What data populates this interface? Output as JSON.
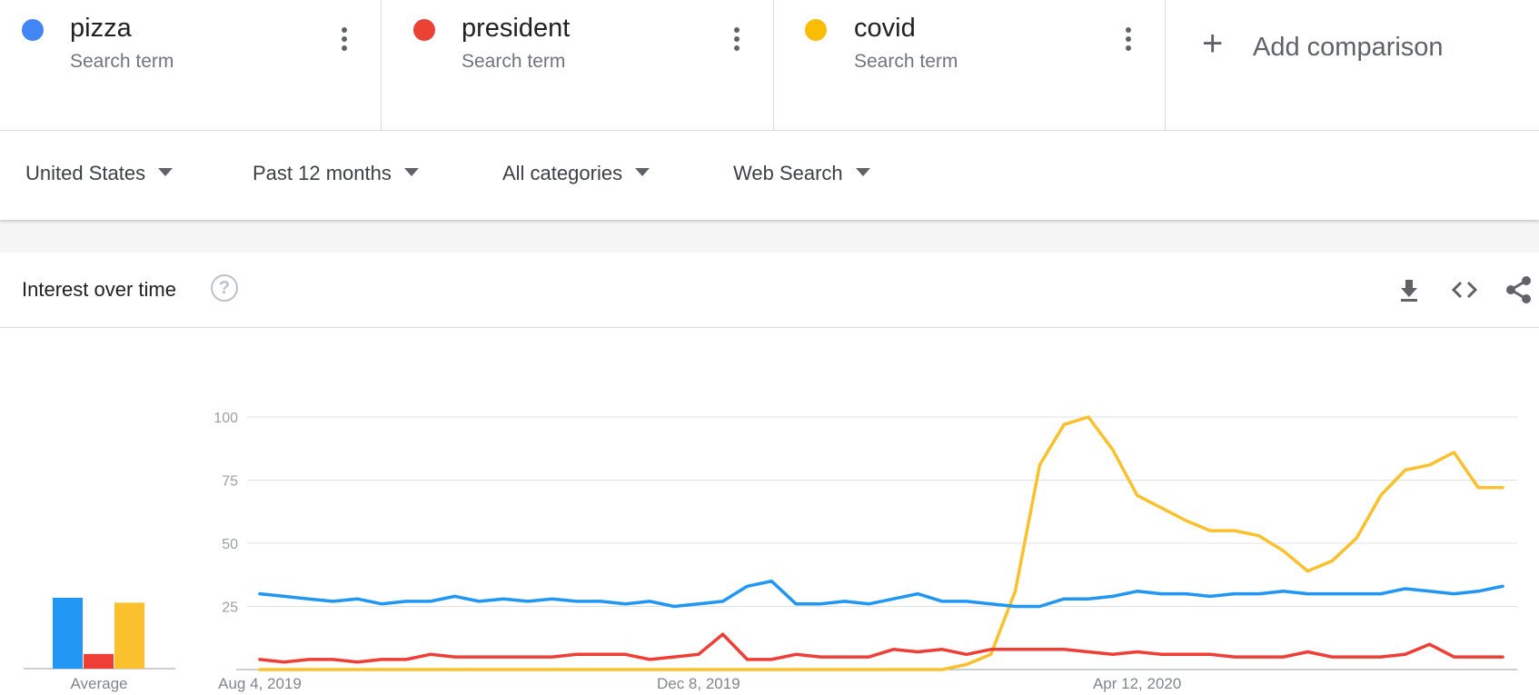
{
  "terms": [
    {
      "name": "pizza",
      "sub": "Search term",
      "color": "#4285f4"
    },
    {
      "name": "president",
      "sub": "Search term",
      "color": "#ea4335"
    },
    {
      "name": "covid",
      "sub": "Search term",
      "color": "#fbbc04"
    }
  ],
  "add_comparison": {
    "icon": "+",
    "label": "Add comparison"
  },
  "filters": {
    "region": "United States",
    "period": "Past 12 months",
    "category": "All categories",
    "property": "Web Search"
  },
  "card": {
    "title": "Interest over time",
    "help_icon": "?",
    "tools": [
      "download-icon",
      "embed-icon",
      "share-icon"
    ]
  },
  "chart_data": {
    "type": "line",
    "title": "",
    "ylim": [
      0,
      100
    ],
    "y_ticks": [
      25,
      50,
      75,
      100
    ],
    "grid": true,
    "x_tick_labels": [
      "Aug 4, 2019",
      "Dec 8, 2019",
      "Apr 12, 2020"
    ],
    "x_tick_index": [
      0,
      18,
      36
    ],
    "series": [
      {
        "name": "pizza",
        "color": "#2196f3",
        "values": [
          30,
          29,
          28,
          27,
          28,
          26,
          27,
          27,
          29,
          27,
          28,
          27,
          28,
          27,
          27,
          26,
          27,
          25,
          26,
          27,
          33,
          35,
          26,
          26,
          27,
          26,
          28,
          30,
          27,
          27,
          26,
          25,
          25,
          28,
          28,
          29,
          31,
          30,
          30,
          29,
          30,
          30,
          31,
          30,
          30,
          30,
          30,
          32,
          31,
          30,
          31,
          33
        ]
      },
      {
        "name": "president",
        "color": "#ef3e36",
        "values": [
          4,
          3,
          4,
          4,
          3,
          4,
          4,
          6,
          5,
          5,
          5,
          5,
          5,
          6,
          6,
          6,
          4,
          5,
          6,
          14,
          4,
          4,
          6,
          5,
          5,
          5,
          8,
          7,
          8,
          6,
          8,
          8,
          8,
          8,
          7,
          6,
          7,
          6,
          6,
          6,
          5,
          5,
          5,
          7,
          5,
          5,
          5,
          6,
          10,
          5,
          5,
          5
        ]
      },
      {
        "name": "covid",
        "color": "#fbc02d",
        "values": [
          0,
          0,
          0,
          0,
          0,
          0,
          0,
          0,
          0,
          0,
          0,
          0,
          0,
          0,
          0,
          0,
          0,
          0,
          0,
          0,
          0,
          0,
          0,
          0,
          0,
          0,
          0,
          0,
          0,
          2,
          6,
          31,
          81,
          97,
          100,
          87,
          69,
          64,
          59,
          55,
          55,
          53,
          47,
          39,
          43,
          52,
          69,
          79,
          81,
          86,
          72,
          72
        ]
      }
    ],
    "average": {
      "label": "Average",
      "bars": [
        {
          "name": "pizza",
          "value": 29,
          "color": "#2196f3"
        },
        {
          "name": "president",
          "value": 6,
          "color": "#ef3e36"
        },
        {
          "name": "covid",
          "value": 27,
          "color": "#fbc02d"
        }
      ]
    }
  }
}
